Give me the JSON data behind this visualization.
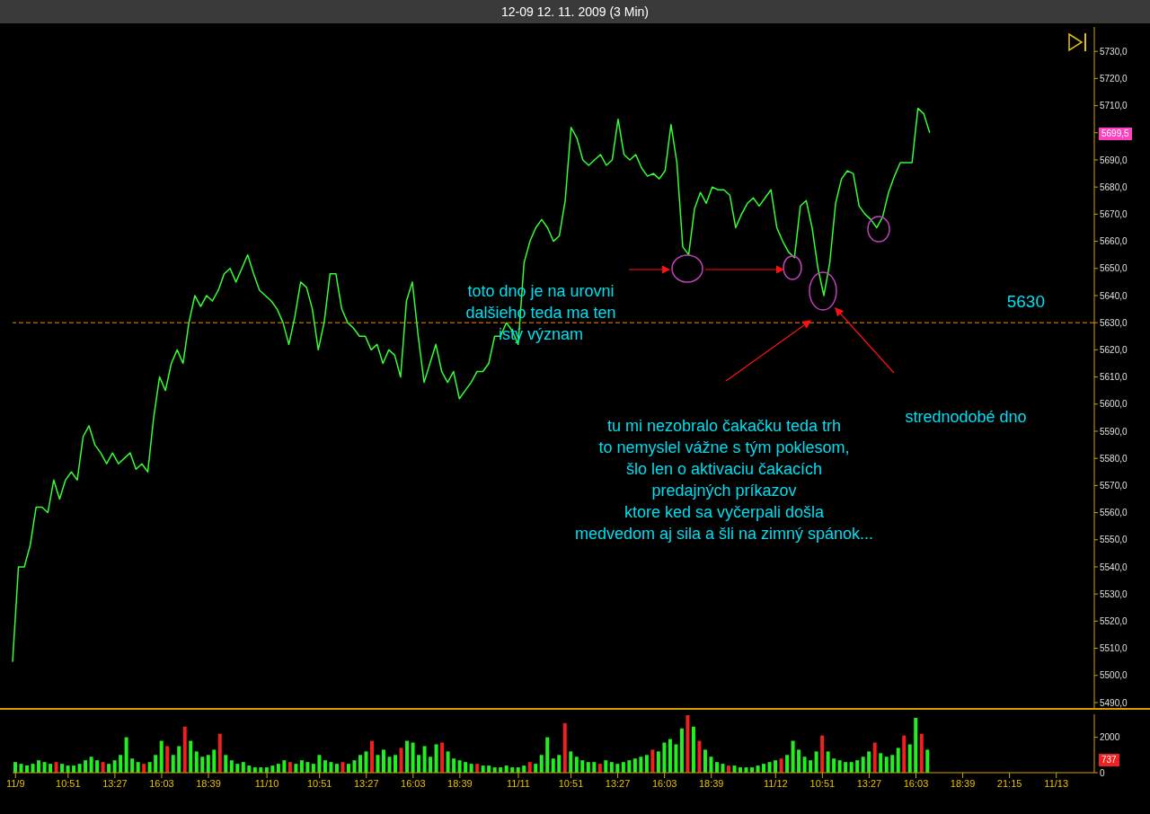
{
  "chart_data": [
    {
      "type": "line",
      "title": "12-09  12. 11. 2009 (3 Min)",
      "color": "#33ff33",
      "marker": "none",
      "line_style": "solid",
      "tick_labels": "y",
      "categories": [
        null,
        null,
        null,
        null,
        null,
        null,
        null,
        null,
        null,
        null,
        null,
        null,
        null,
        null,
        null,
        null,
        null,
        null,
        null,
        null,
        null,
        null,
        null,
        null,
        null,
        null,
        null,
        null,
        null,
        null,
        null,
        null,
        null,
        null,
        null,
        null,
        null,
        null,
        null,
        null,
        null,
        null,
        null,
        null,
        null,
        null,
        null,
        null,
        null,
        null,
        null,
        null,
        null,
        null,
        null,
        null,
        null,
        null,
        null,
        null,
        null,
        null,
        null,
        null,
        null,
        null,
        null,
        null,
        null,
        null,
        null,
        null,
        null,
        null,
        null,
        null,
        null,
        null,
        null,
        null,
        null,
        null,
        null,
        null,
        null,
        null,
        null,
        null,
        null,
        null,
        null,
        null,
        null,
        null,
        null,
        null,
        null,
        null,
        null,
        null,
        null,
        null,
        null,
        null,
        null,
        null,
        null,
        null,
        null,
        null,
        null,
        null,
        null,
        null,
        null,
        null,
        null,
        null,
        null,
        null,
        null,
        null,
        null,
        null,
        null,
        null,
        null,
        null,
        null,
        null,
        null,
        null,
        null,
        null,
        null,
        null,
        null,
        null,
        null,
        null,
        null,
        null,
        null,
        null,
        null,
        null,
        null,
        null,
        null,
        null,
        null,
        null,
        null,
        null,
        null,
        null,
        null,
        null,
        null,
        null,
        null,
        null,
        null,
        null,
        null,
        null,
        null,
        null,
        null,
        null,
        null,
        null,
        null,
        null,
        null,
        null,
        null,
        null,
        null,
        null,
        null,
        null,
        null,
        null,
        null
      ],
      "values": [
        5505,
        5540,
        5540,
        5548,
        5562,
        5562,
        5560,
        5572,
        5565,
        5572,
        5575,
        5572,
        5588,
        5592,
        5585,
        5582,
        5578,
        5582,
        5578,
        5580,
        5582,
        5576,
        5578,
        5575,
        5595,
        5610,
        5605,
        5615,
        5620,
        5615,
        5630,
        5640,
        5636,
        5640,
        5638,
        5642,
        5648,
        5650,
        5645,
        5650,
        5655,
        5648,
        5642,
        5640,
        5638,
        5635,
        5630,
        5622,
        5632,
        5645,
        5643,
        5635,
        5620,
        5630,
        5648,
        5648,
        5635,
        5630,
        5628,
        5625,
        5625,
        5620,
        5622,
        5615,
        5620,
        5618,
        5610,
        5638,
        5645,
        5625,
        5608,
        5615,
        5622,
        5612,
        5608,
        5612,
        5602,
        5605,
        5608,
        5612,
        5612,
        5615,
        5625,
        5625,
        5630,
        5627,
        5622,
        5652,
        5660,
        5665,
        5668,
        5665,
        5660,
        5662,
        5675,
        5702,
        5698,
        5690,
        5688,
        5690,
        5692,
        5688,
        5690,
        5705,
        5692,
        5690,
        5692,
        5687,
        5684,
        5685,
        5683,
        5686,
        5703,
        5689,
        5658,
        5655,
        5672,
        5678,
        5674,
        5680,
        5679,
        5679,
        5677,
        5665,
        5670,
        5674,
        5676,
        5673,
        5676,
        5679,
        5665,
        5660,
        5656,
        5654,
        5673,
        5675,
        5665,
        5650,
        5640,
        5652,
        5674,
        5683,
        5686,
        5685,
        5673,
        5670,
        5668,
        5665,
        5669,
        5678,
        5684,
        5689,
        5689,
        5689,
        5709,
        5707,
        5700,
        null,
        null,
        null,
        null,
        null,
        null,
        null,
        null,
        null,
        null,
        null,
        null,
        null,
        null,
        null,
        null,
        null,
        null,
        null,
        null,
        null,
        null,
        null,
        null,
        null,
        null,
        null,
        null
      ],
      "ylim": [
        5488,
        5739
      ],
      "yticks": [
        {
          "value": 5490,
          "label": "5490,0"
        },
        {
          "value": 5500,
          "label": "5500,0"
        },
        {
          "value": 5510,
          "label": "5510,0"
        },
        {
          "value": 5520,
          "label": "5520,0"
        },
        {
          "value": 5530,
          "label": "5530,0"
        },
        {
          "value": 5540,
          "label": "5540,0"
        },
        {
          "value": 5550,
          "label": "5550,0"
        },
        {
          "value": 5560,
          "label": "5560,0"
        },
        {
          "value": 5570,
          "label": "5570,0"
        },
        {
          "value": 5580,
          "label": "5580,0"
        },
        {
          "value": 5590,
          "label": "5590,0"
        },
        {
          "value": 5600,
          "label": "5600,0"
        },
        {
          "value": 5610,
          "label": "5610,0"
        },
        {
          "value": 5620,
          "label": "5620,0"
        },
        {
          "value": 5630,
          "label": "5630,0"
        },
        {
          "value": 5640,
          "label": "5640,0"
        },
        {
          "value": 5650,
          "label": "5650,0"
        },
        {
          "value": 5660,
          "label": "5660,0"
        },
        {
          "value": 5670,
          "label": "5670,0"
        },
        {
          "value": 5680,
          "label": "5680,0"
        },
        {
          "value": 5690,
          "label": "5690,0"
        },
        {
          "value": 5700,
          "label": null
        },
        {
          "value": 5710,
          "label": "5710,0"
        },
        {
          "value": 5720,
          "label": "5720,0"
        },
        {
          "value": 5730,
          "label": "5730,0"
        }
      ],
      "ref_lines": [
        {
          "axis": "y",
          "value": 5630,
          "label": "5630",
          "color": "#ff8c00",
          "line_style": "dashed"
        }
      ],
      "annotations": [
        "toto dno je na urovni\ndalšieho teda ma ten\nistý význam",
        "tu mi nezobralo čakačku teda trh\nto nemyslel vážne s tým poklesom,\nšlo len o aktivaciu čakacích\npredajných príkazov\nktore ked sa vyčerpali došla\nmedvedom aj sila a šli na zimný spánok...",
        "strednodobé dno",
        "5699,5"
      ]
    },
    {
      "type": "bar",
      "color": "#22ee22",
      "categories": [
        "11/9",
        null,
        null,
        null,
        null,
        null,
        null,
        null,
        null,
        "10:51",
        null,
        null,
        null,
        null,
        null,
        null,
        null,
        "13:27",
        null,
        null,
        null,
        null,
        null,
        null,
        null,
        "16:03",
        null,
        null,
        null,
        null,
        null,
        null,
        null,
        "18:39",
        null,
        null,
        null,
        null,
        null,
        null,
        null,
        null,
        null,
        "11/10",
        null,
        null,
        null,
        null,
        null,
        null,
        null,
        null,
        "10:51",
        null,
        null,
        null,
        null,
        null,
        null,
        null,
        "13:27",
        null,
        null,
        null,
        null,
        null,
        null,
        null,
        "16:03",
        null,
        null,
        null,
        null,
        null,
        null,
        null,
        "18:39",
        null,
        null,
        null,
        null,
        null,
        null,
        null,
        null,
        null,
        "11/11",
        null,
        null,
        null,
        null,
        null,
        null,
        null,
        null,
        "10:51",
        null,
        null,
        null,
        null,
        null,
        null,
        null,
        "13:27",
        null,
        null,
        null,
        null,
        null,
        null,
        null,
        "16:03",
        null,
        null,
        null,
        null,
        null,
        null,
        null,
        "18:39",
        null,
        null,
        null,
        null,
        null,
        null,
        null,
        null,
        null,
        null,
        "11/12",
        null,
        null,
        null,
        null,
        null,
        null,
        null,
        "10:51",
        null,
        null,
        null,
        null,
        null,
        null,
        null,
        "13:27",
        null,
        null,
        null,
        null,
        null,
        null,
        null,
        "16:03",
        null,
        null,
        null,
        null,
        null,
        null,
        null,
        "18:39",
        null,
        null,
        null,
        null,
        null,
        null,
        null,
        "21:15",
        null,
        null,
        null,
        null,
        null,
        null,
        null,
        "11/13",
        null,
        null,
        null,
        null,
        null,
        null
      ],
      "values": [
        600,
        500,
        400,
        500,
        700,
        600,
        500,
        600,
        500,
        400,
        400,
        500,
        700,
        900,
        700,
        600,
        500,
        700,
        1000,
        2000,
        800,
        600,
        500,
        600,
        1000,
        1800,
        1500,
        1000,
        1500,
        2600,
        1800,
        1200,
        900,
        1000,
        1300,
        2200,
        1000,
        700,
        500,
        600,
        400,
        300,
        300,
        300,
        400,
        500,
        700,
        600,
        500,
        700,
        600,
        500,
        1000,
        700,
        600,
        500,
        600,
        500,
        700,
        1000,
        1200,
        1800,
        1000,
        1300,
        900,
        1000,
        1400,
        1800,
        1700,
        1000,
        1500,
        900,
        1600,
        1700,
        1200,
        800,
        700,
        600,
        500,
        500,
        400,
        400,
        300,
        300,
        400,
        300,
        300,
        400,
        600,
        500,
        1000,
        2000,
        800,
        1000,
        2800,
        1200,
        900,
        700,
        600,
        600,
        500,
        700,
        600,
        500,
        600,
        700,
        800,
        900,
        1000,
        1300,
        1200,
        1700,
        1900,
        1600,
        2500,
        3250,
        2600,
        1800,
        1300,
        900,
        600,
        500,
        400,
        400,
        300,
        300,
        300,
        400,
        500,
        600,
        700,
        800,
        1000,
        1800,
        1300,
        900,
        700,
        1200,
        2100,
        1200,
        800,
        700,
        600,
        600,
        700,
        900,
        1200,
        1700,
        1100,
        900,
        1000,
        1400,
        2100,
        1600,
        3100,
        2200,
        1300,
        null,
        null,
        null,
        null,
        null,
        null,
        null,
        null,
        null,
        null,
        null,
        null,
        null,
        null,
        null,
        null,
        null,
        null,
        null,
        null,
        null,
        null,
        null,
        null,
        null,
        null,
        null,
        null
      ],
      "colors": [
        "#22ee22",
        "#22ee22",
        "#22ee22",
        "#22ee22",
        "#22ee22",
        "#22ee22",
        "#22ee22",
        "#ee2020",
        "#22ee22",
        "#22ee22",
        "#22ee22",
        "#22ee22",
        "#22ee22",
        "#22ee22",
        "#22ee22",
        "#ee2020",
        "#22ee22",
        "#22ee22",
        "#22ee22",
        "#22ee22",
        "#22ee22",
        "#22ee22",
        "#ee2020",
        "#22ee22",
        "#22ee22",
        "#22ee22",
        "#ee2020",
        "#22ee22",
        "#22ee22",
        "#ee2020",
        "#22ee22",
        "#22ee22",
        "#22ee22",
        "#22ee22",
        "#22ee22",
        "#ee2020",
        "#22ee22",
        "#22ee22",
        "#22ee22",
        "#22ee22",
        "#22ee22",
        "#22ee22",
        "#22ee22",
        "#22ee22",
        "#22ee22",
        "#22ee22",
        "#22ee22",
        "#ee2020",
        "#22ee22",
        "#22ee22",
        "#22ee22",
        "#22ee22",
        "#22ee22",
        "#22ee22",
        "#22ee22",
        "#22ee22",
        "#ee2020",
        "#22ee22",
        "#22ee22",
        "#22ee22",
        "#22ee22",
        "#ee2020",
        "#22ee22",
        "#22ee22",
        "#22ee22",
        "#22ee22",
        "#ee2020",
        "#22ee22",
        "#22ee22",
        "#22ee22",
        "#22ee22",
        "#22ee22",
        "#22ee22",
        "#ee2020",
        "#22ee22",
        "#22ee22",
        "#22ee22",
        "#22ee22",
        "#22ee22",
        "#ee2020",
        "#22ee22",
        "#22ee22",
        "#22ee22",
        "#22ee22",
        "#22ee22",
        "#22ee22",
        "#22ee22",
        "#22ee22",
        "#ee2020",
        "#22ee22",
        "#22ee22",
        "#22ee22",
        "#22ee22",
        "#22ee22",
        "#ee2020",
        "#22ee22",
        "#22ee22",
        "#22ee22",
        "#22ee22",
        "#22ee22",
        "#ee2020",
        "#22ee22",
        "#22ee22",
        "#22ee22",
        "#22ee22",
        "#22ee22",
        "#22ee22",
        "#22ee22",
        "#22ee22",
        "#ee2020",
        "#22ee22",
        "#22ee22",
        "#22ee22",
        "#22ee22",
        "#22ee22",
        "#ee2020",
        "#22ee22",
        "#ee2020",
        "#22ee22",
        "#22ee22",
        "#22ee22",
        "#22ee22",
        "#ee2020",
        "#22ee22",
        "#22ee22",
        "#22ee22",
        "#22ee22",
        "#22ee22",
        "#22ee22",
        "#22ee22",
        "#22ee22",
        "#ee2020",
        "#22ee22",
        "#22ee22",
        "#22ee22",
        "#22ee22",
        "#22ee22",
        "#22ee22",
        "#ee2020",
        "#22ee22",
        "#22ee22",
        "#22ee22",
        "#22ee22",
        "#22ee22",
        "#22ee22",
        "#22ee22",
        "#22ee22",
        "#ee2020",
        "#22ee22",
        "#22ee22",
        "#22ee22",
        "#22ee22",
        "#ee2020",
        "#22ee22",
        "#22ee22",
        "#ee2020",
        "#22ee22",
        null,
        null,
        null,
        null,
        null,
        null,
        null,
        null,
        null,
        null,
        null,
        null,
        null,
        null,
        null,
        null,
        null,
        null,
        null,
        null,
        null,
        null,
        null,
        null,
        null,
        null,
        null,
        null
      ],
      "ylim": [
        0,
        3300
      ],
      "yticks": [
        0,
        2000
      ],
      "annotations": [
        "737"
      ]
    }
  ]
}
